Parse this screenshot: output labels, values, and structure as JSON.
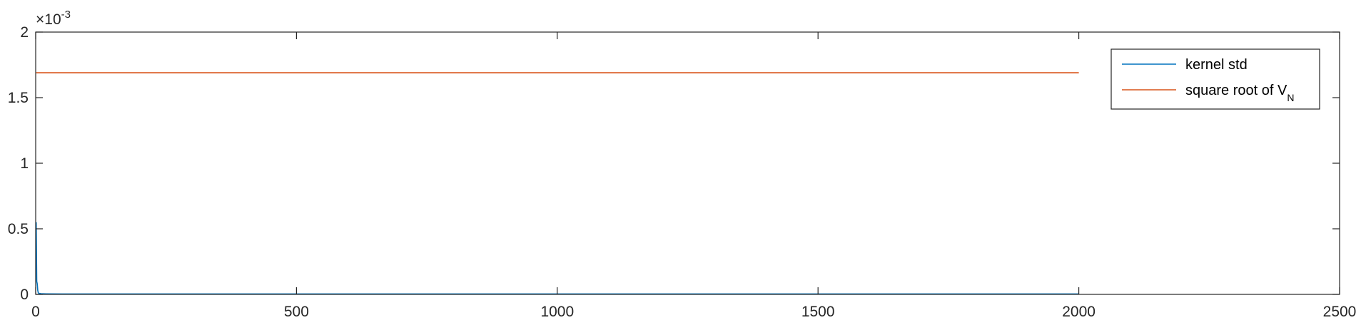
{
  "chart_data": {
    "type": "line",
    "title": "",
    "xlabel": "",
    "ylabel": "",
    "xlim": [
      0,
      2500
    ],
    "ylim": [
      0,
      2
    ],
    "y_exponent_label": "×10",
    "y_exponent_power": "-3",
    "x_ticks": [
      0,
      500,
      1000,
      1500,
      2000,
      2500
    ],
    "x_tick_labels": [
      "0",
      "500",
      "1000",
      "1500",
      "2000",
      "2500"
    ],
    "y_ticks": [
      0,
      0.5,
      1,
      1.5,
      2
    ],
    "y_tick_labels": [
      "0",
      "0.5",
      "1",
      "1.5",
      "2"
    ],
    "grid": false,
    "legend_position": "top-right",
    "series": [
      {
        "name": "kernel std",
        "color": "#0072BD",
        "x": [
          1,
          2,
          3,
          4,
          5,
          6,
          10,
          20,
          50,
          100,
          500,
          1000,
          1500,
          2000
        ],
        "y": [
          0.55,
          0.1,
          0.08,
          0.03,
          0.012,
          0.008,
          0.005,
          0.004,
          0.003,
          0.003,
          0.003,
          0.003,
          0.003,
          0.003
        ]
      },
      {
        "name": "square root of V",
        "name_subscript": "N",
        "color": "#D95319",
        "x": [
          1,
          2000
        ],
        "y": [
          1.69,
          1.69
        ]
      }
    ]
  }
}
